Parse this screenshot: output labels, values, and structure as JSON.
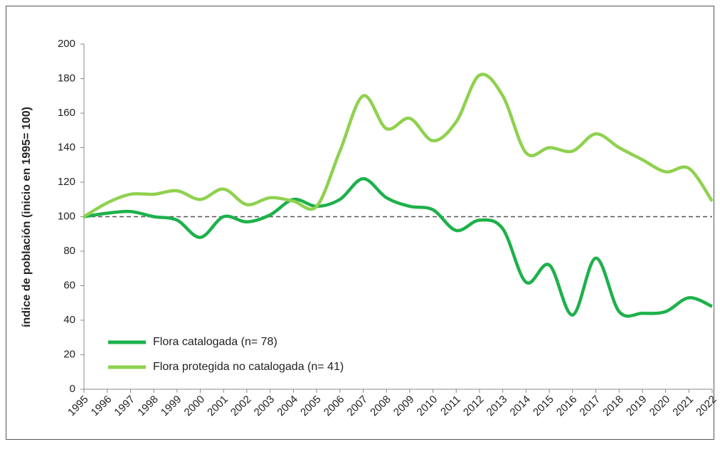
{
  "chart_data": {
    "type": "line",
    "y_label": "índice de población (inicio en 1995= 100)",
    "x": [
      1995,
      1996,
      1997,
      1998,
      1999,
      2000,
      2001,
      2002,
      2003,
      2004,
      2005,
      2006,
      2007,
      2008,
      2009,
      2010,
      2011,
      2012,
      2013,
      2014,
      2015,
      2016,
      2017,
      2018,
      2019,
      2020,
      2021,
      2022
    ],
    "series": [
      {
        "name": "Flora catalogada (n= 78)",
        "color": "#1db14b",
        "values": [
          100,
          102,
          103,
          100,
          98,
          88,
          100,
          97,
          101,
          110,
          106,
          110,
          122,
          111,
          106,
          104,
          92,
          98,
          93,
          62,
          72,
          43,
          76,
          45,
          44,
          45,
          53,
          48
        ]
      },
      {
        "name": "Flora protegida no catalogada (n= 41)",
        "color": "#8fd14f",
        "values": [
          100,
          108,
          113,
          113,
          115,
          110,
          116,
          107,
          111,
          109,
          106,
          138,
          170,
          151,
          157,
          144,
          155,
          182,
          170,
          137,
          140,
          138,
          148,
          140,
          133,
          126,
          128,
          109
        ]
      }
    ],
    "xlim": [
      1995,
      2022
    ],
    "xticks": [
      1995,
      1996,
      1997,
      1998,
      1999,
      2000,
      2001,
      2002,
      2003,
      2004,
      2005,
      2006,
      2007,
      2008,
      2009,
      2010,
      2011,
      2012,
      2013,
      2014,
      2015,
      2016,
      2017,
      2018,
      2019,
      2020,
      2021,
      2022
    ],
    "ylim": [
      0,
      200
    ],
    "yticks": [
      0,
      20,
      40,
      60,
      80,
      100,
      120,
      140,
      160,
      180,
      200
    ],
    "reference_line": 100,
    "smooth": true,
    "legend": "lower-left"
  }
}
